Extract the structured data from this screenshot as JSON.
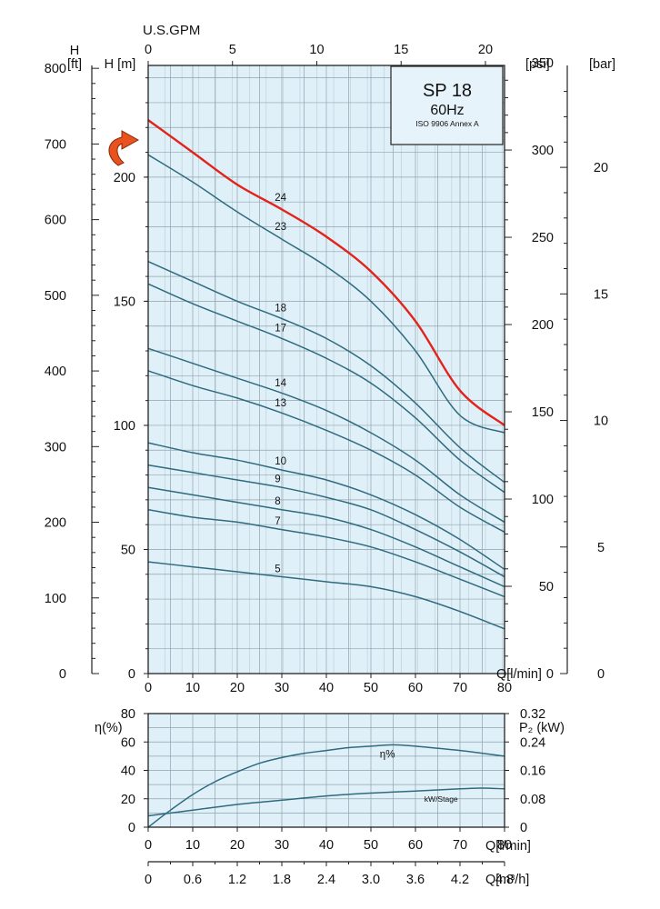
{
  "chart_data": [
    {
      "type": "line",
      "title": "SP 18",
      "subtitle": "60Hz",
      "standard": "ISO 9906 Annex A",
      "xlabel": "Q[l/min]",
      "xlim": [
        0,
        80
      ],
      "x_ticks": [
        0,
        10,
        20,
        30,
        40,
        50,
        60,
        70,
        80
      ],
      "ylabel": "H [m]",
      "ylim": [
        0,
        245
      ],
      "y_ticks": [
        0,
        50,
        100,
        150,
        200
      ],
      "top_axis": {
        "label": "U.S.GPM",
        "ticks": [
          0,
          5,
          10,
          15,
          20
        ],
        "factor": 3.78541
      },
      "left_axis_ft": {
        "label_top": "H",
        "label_unit": "[ft]",
        "ticks": [
          0,
          100,
          200,
          300,
          400,
          500,
          600,
          700,
          800
        ],
        "factor": 0.3048
      },
      "right_axis_psi": {
        "label": "[psi]",
        "ticks": [
          0,
          50,
          100,
          150,
          200,
          250,
          300,
          350
        ],
        "factor": 0.70307
      },
      "right_axis_bar": {
        "label": "[bar]",
        "ticks": [
          0,
          5,
          10,
          15,
          20
        ],
        "factor": 10.197
      },
      "grid": true,
      "series": [
        {
          "name": "24",
          "color": "#e2231a",
          "label_x": 28,
          "points": [
            [
              0,
              223
            ],
            [
              10,
              210
            ],
            [
              20,
              197
            ],
            [
              30,
              187
            ],
            [
              40,
              176
            ],
            [
              50,
              162
            ],
            [
              60,
              142
            ],
            [
              70,
              114
            ],
            [
              80,
              100
            ]
          ]
        },
        {
          "name": "23",
          "color": "#2e6b7f",
          "label_x": 28,
          "points": [
            [
              0,
              209
            ],
            [
              10,
              198
            ],
            [
              20,
              186
            ],
            [
              30,
              175
            ],
            [
              40,
              164
            ],
            [
              50,
              150
            ],
            [
              60,
              130
            ],
            [
              70,
              104
            ],
            [
              80,
              97
            ]
          ]
        },
        {
          "name": "18",
          "color": "#2e6b7f",
          "label_x": 28,
          "points": [
            [
              0,
              166
            ],
            [
              10,
              158
            ],
            [
              20,
              150
            ],
            [
              30,
              143
            ],
            [
              40,
              135
            ],
            [
              50,
              124
            ],
            [
              60,
              109
            ],
            [
              70,
              91
            ],
            [
              80,
              77
            ]
          ]
        },
        {
          "name": "17",
          "color": "#2e6b7f",
          "label_x": 28,
          "points": [
            [
              0,
              157
            ],
            [
              10,
              149
            ],
            [
              20,
              142
            ],
            [
              30,
              135
            ],
            [
              40,
              127
            ],
            [
              50,
              117
            ],
            [
              60,
              103
            ],
            [
              70,
              86
            ],
            [
              80,
              73
            ]
          ]
        },
        {
          "name": "14",
          "color": "#2e6b7f",
          "label_x": 28,
          "points": [
            [
              0,
              131
            ],
            [
              10,
              125
            ],
            [
              20,
              119
            ],
            [
              30,
              113
            ],
            [
              40,
              106
            ],
            [
              50,
              97
            ],
            [
              60,
              86
            ],
            [
              70,
              72
            ],
            [
              80,
              61
            ]
          ]
        },
        {
          "name": "13",
          "color": "#2e6b7f",
          "label_x": 28,
          "points": [
            [
              0,
              122
            ],
            [
              10,
              116
            ],
            [
              20,
              111
            ],
            [
              30,
              105
            ],
            [
              40,
              98
            ],
            [
              50,
              90
            ],
            [
              60,
              80
            ],
            [
              70,
              67
            ],
            [
              80,
              57
            ]
          ]
        },
        {
          "name": "10",
          "color": "#2e6b7f",
          "label_x": 28,
          "points": [
            [
              0,
              93
            ],
            [
              10,
              89
            ],
            [
              20,
              86
            ],
            [
              30,
              82
            ],
            [
              40,
              78
            ],
            [
              50,
              72
            ],
            [
              60,
              64
            ],
            [
              70,
              54
            ],
            [
              80,
              42
            ]
          ]
        },
        {
          "name": "9",
          "color": "#2e6b7f",
          "label_x": 28,
          "points": [
            [
              0,
              84
            ],
            [
              10,
              81
            ],
            [
              20,
              78
            ],
            [
              30,
              75
            ],
            [
              40,
              71
            ],
            [
              50,
              66
            ],
            [
              60,
              58
            ],
            [
              70,
              49
            ],
            [
              80,
              39
            ]
          ]
        },
        {
          "name": "8",
          "color": "#2e6b7f",
          "label_x": 28,
          "points": [
            [
              0,
              75
            ],
            [
              10,
              72
            ],
            [
              20,
              69
            ],
            [
              30,
              66
            ],
            [
              40,
              63
            ],
            [
              50,
              58
            ],
            [
              60,
              51
            ],
            [
              70,
              43
            ],
            [
              80,
              35
            ]
          ]
        },
        {
          "name": "7",
          "color": "#2e6b7f",
          "label_x": 28,
          "points": [
            [
              0,
              66
            ],
            [
              10,
              63
            ],
            [
              20,
              61
            ],
            [
              30,
              58
            ],
            [
              40,
              55
            ],
            [
              50,
              51
            ],
            [
              60,
              45
            ],
            [
              70,
              38
            ],
            [
              80,
              31
            ]
          ]
        },
        {
          "name": "5",
          "color": "#2e6b7f",
          "label_x": 28,
          "points": [
            [
              0,
              45
            ],
            [
              10,
              43
            ],
            [
              20,
              41
            ],
            [
              30,
              39
            ],
            [
              40,
              37
            ],
            [
              50,
              35
            ],
            [
              60,
              31
            ],
            [
              70,
              25
            ],
            [
              80,
              18
            ]
          ]
        }
      ]
    },
    {
      "type": "line",
      "xlabel": "Q[l/min]",
      "xlim": [
        0,
        80
      ],
      "x_ticks": [
        0,
        10,
        20,
        30,
        40,
        50,
        60,
        70,
        80
      ],
      "ylabel": "η(%)",
      "ylim": [
        0,
        80
      ],
      "y_ticks": [
        0,
        20,
        40,
        60,
        80
      ],
      "right_axis": {
        "label": "P₂ (kW)",
        "ticks": [
          "0",
          "0.08",
          "0.16",
          "0.24",
          "0.32"
        ]
      },
      "second_x_axis": {
        "label": "Q[m³/h]",
        "ticks": [
          "0",
          "0.6",
          "1.2",
          "1.8",
          "2.4",
          "3.0",
          "3.6",
          "4.2",
          "4.8"
        ],
        "factor": 16.6667
      },
      "grid": true,
      "series": [
        {
          "name": "η%",
          "color": "#2e6b7f",
          "label_x": 55,
          "points": [
            [
              0,
              0
            ],
            [
              5,
              12
            ],
            [
              10,
              23
            ],
            [
              15,
              32
            ],
            [
              20,
              39
            ],
            [
              25,
              45
            ],
            [
              30,
              49
            ],
            [
              35,
              52
            ],
            [
              40,
              54
            ],
            [
              45,
              56
            ],
            [
              50,
              57
            ],
            [
              55,
              58
            ],
            [
              60,
              57
            ],
            [
              70,
              54
            ],
            [
              80,
              50
            ]
          ]
        },
        {
          "name": "kW/Stage",
          "color": "#2e6b7f",
          "label_x": 65,
          "points": [
            [
              0,
              8
            ],
            [
              10,
              12
            ],
            [
              20,
              16
            ],
            [
              30,
              19
            ],
            [
              40,
              22
            ],
            [
              50,
              24
            ],
            [
              60,
              25.5
            ],
            [
              70,
              27
            ],
            [
              75,
              27.5
            ],
            [
              80,
              27
            ]
          ]
        }
      ]
    }
  ]
}
